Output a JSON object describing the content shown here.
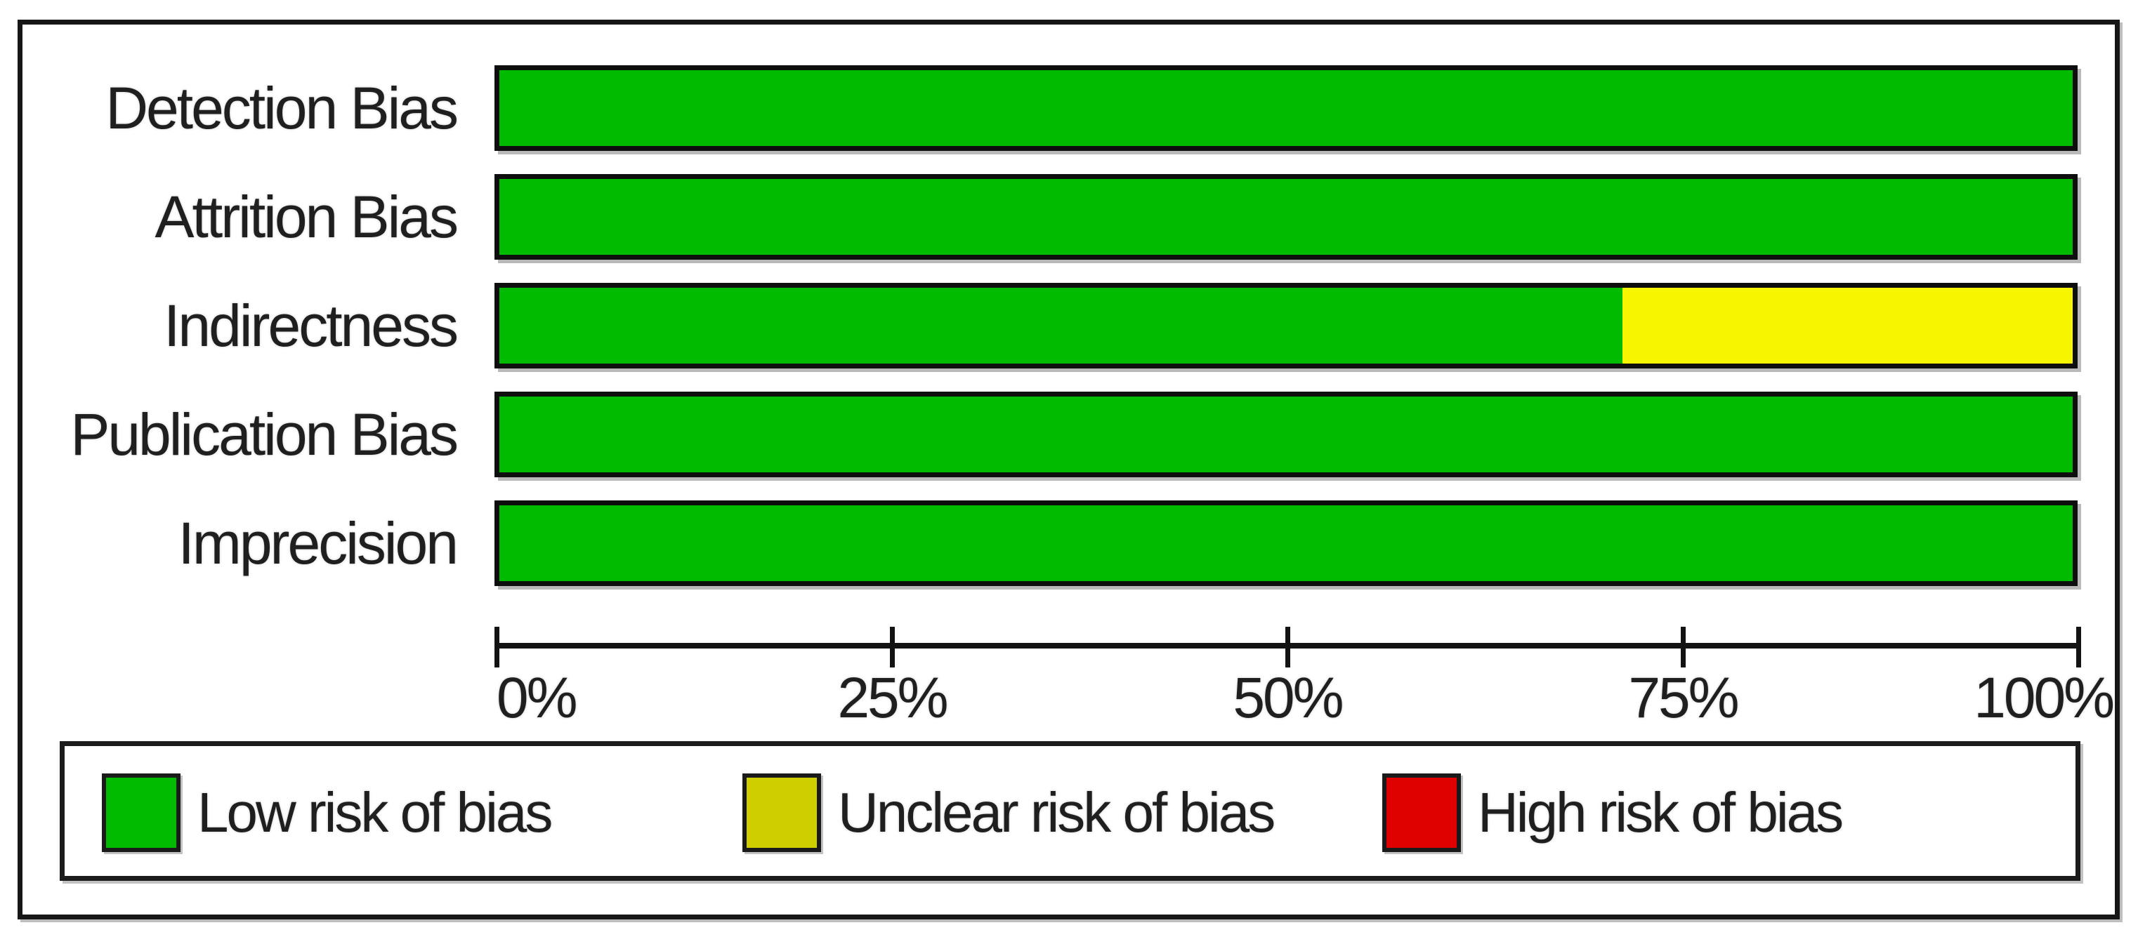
{
  "figure": {
    "kind": "risk-of-bias-graph",
    "background": "#ffffff",
    "frame_border_color": "#161616",
    "text_color": "#1f1f1f"
  },
  "chart_data": {
    "type": "bar",
    "orientation": "horizontal",
    "stacked": true,
    "title": "",
    "xlabel": "",
    "ylabel": "",
    "categories": [
      "Detection Bias",
      "Attrition Bias",
      "Indirectness",
      "Publication Bias",
      "Imprecision"
    ],
    "series": [
      {
        "name": "Low risk of bias",
        "color": "#00BB00",
        "values": [
          100,
          100,
          71.4,
          100,
          100
        ]
      },
      {
        "name": "Unclear risk of bias",
        "color": "#F8F500",
        "values": [
          0,
          0,
          28.6,
          0,
          0
        ]
      },
      {
        "name": "High risk of bias",
        "color": "#DF0000",
        "values": [
          0,
          0,
          0,
          0,
          0
        ]
      }
    ],
    "x_ticks": [
      {
        "label": "0%",
        "value": 0
      },
      {
        "label": "25%",
        "value": 25
      },
      {
        "label": "50%",
        "value": 50
      },
      {
        "label": "75%",
        "value": 75
      },
      {
        "label": "100%",
        "value": 100
      }
    ],
    "xlim": [
      0,
      100
    ],
    "grid": false,
    "legend": {
      "position": "bottom",
      "items": [
        {
          "label": "Low risk of bias",
          "color": "#00BB00"
        },
        {
          "label": "Unclear risk of bias",
          "color": "#CFCF00"
        },
        {
          "label": "High risk of bias",
          "color": "#DF0000"
        }
      ]
    }
  }
}
